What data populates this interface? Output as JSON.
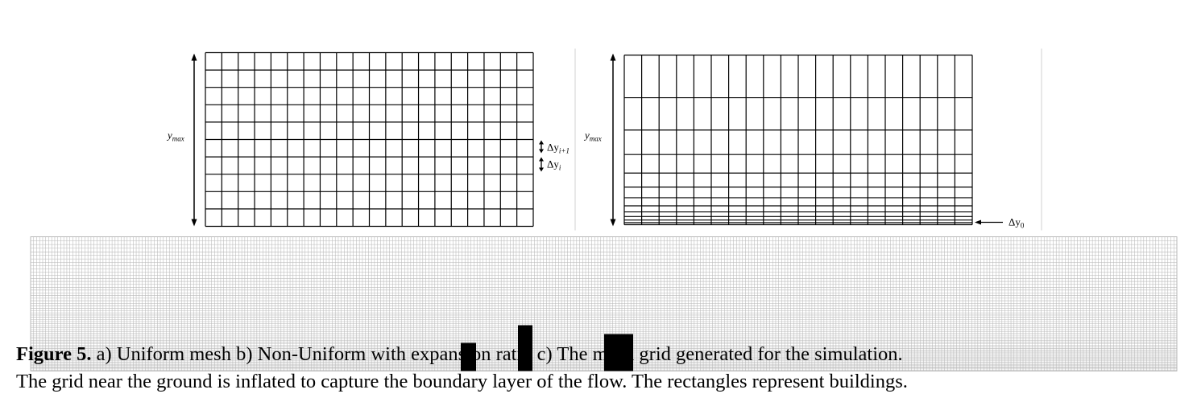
{
  "panel_a": {
    "ymax_label": "y",
    "ymax_sub": "max",
    "dy_next_label": "Δy",
    "dy_next_sub": "i+1",
    "dy_label": "Δy",
    "dy_sub": "i"
  },
  "panel_b": {
    "ymax_label": "y",
    "ymax_sub": "max",
    "dy0_label": "Δy",
    "dy0_sub": "0"
  },
  "panel_c": {
    "buildings_count": 3
  },
  "caption": {
    "figure_label": "Figure 5.",
    "line1_text": " a) Uniform mesh b) Non-Uniform with expansion ratio c) The mesh grid generated for the simulation.",
    "line2_text": "The grid near the ground is inflated to capture the boundary layer of the flow. The rectangles represent buildings."
  }
}
